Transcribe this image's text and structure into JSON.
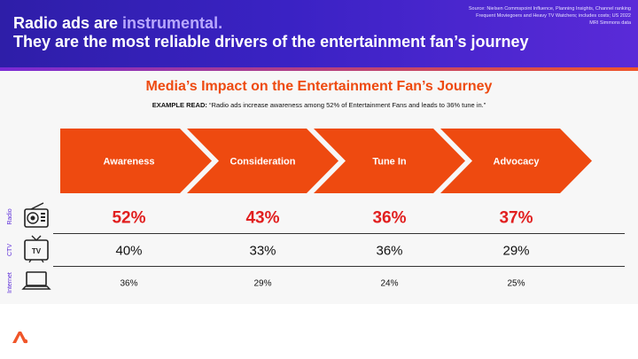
{
  "header": {
    "headline_line1_prefix": "Radio ads are ",
    "headline_line1_accent": "instrumental.",
    "headline_line2": "They are the most reliable drivers of the entertainment fan’s journey",
    "source_note": "Source: Nielsen Commspoint Influence, Planning Insights, Channel ranking Frequent Moviegoers and Heavy TV Watchers; includes costs; US 2022 MRI Simmons data"
  },
  "colors": {
    "banner": "#3a22c4",
    "accent_orange": "#ee4a10",
    "radio_red": "#e11f1f",
    "channel_purple": "#5a2ad8"
  },
  "chart_data": {
    "type": "table",
    "title": "Media’s Impact on the Entertainment Fan’s Journey",
    "example_label": "EXAMPLE READ:",
    "example_text": "“Radio ads increase awareness among 52% of Entertainment Fans and leads to 36% tune in.”",
    "categories": [
      "Awareness",
      "Consideration",
      "Tune In",
      "Advocacy"
    ],
    "series": [
      {
        "name": "Radio",
        "icon": "radio-icon",
        "values": [
          52,
          43,
          36,
          37
        ]
      },
      {
        "name": "CTV",
        "icon": "tv-icon",
        "values": [
          40,
          33,
          36,
          29
        ]
      },
      {
        "name": "Internet",
        "icon": "laptop-icon",
        "values": [
          36,
          29,
          24,
          25
        ]
      }
    ],
    "value_suffix": "%"
  },
  "footer": {
    "logo": "audacy-logo-icon"
  }
}
